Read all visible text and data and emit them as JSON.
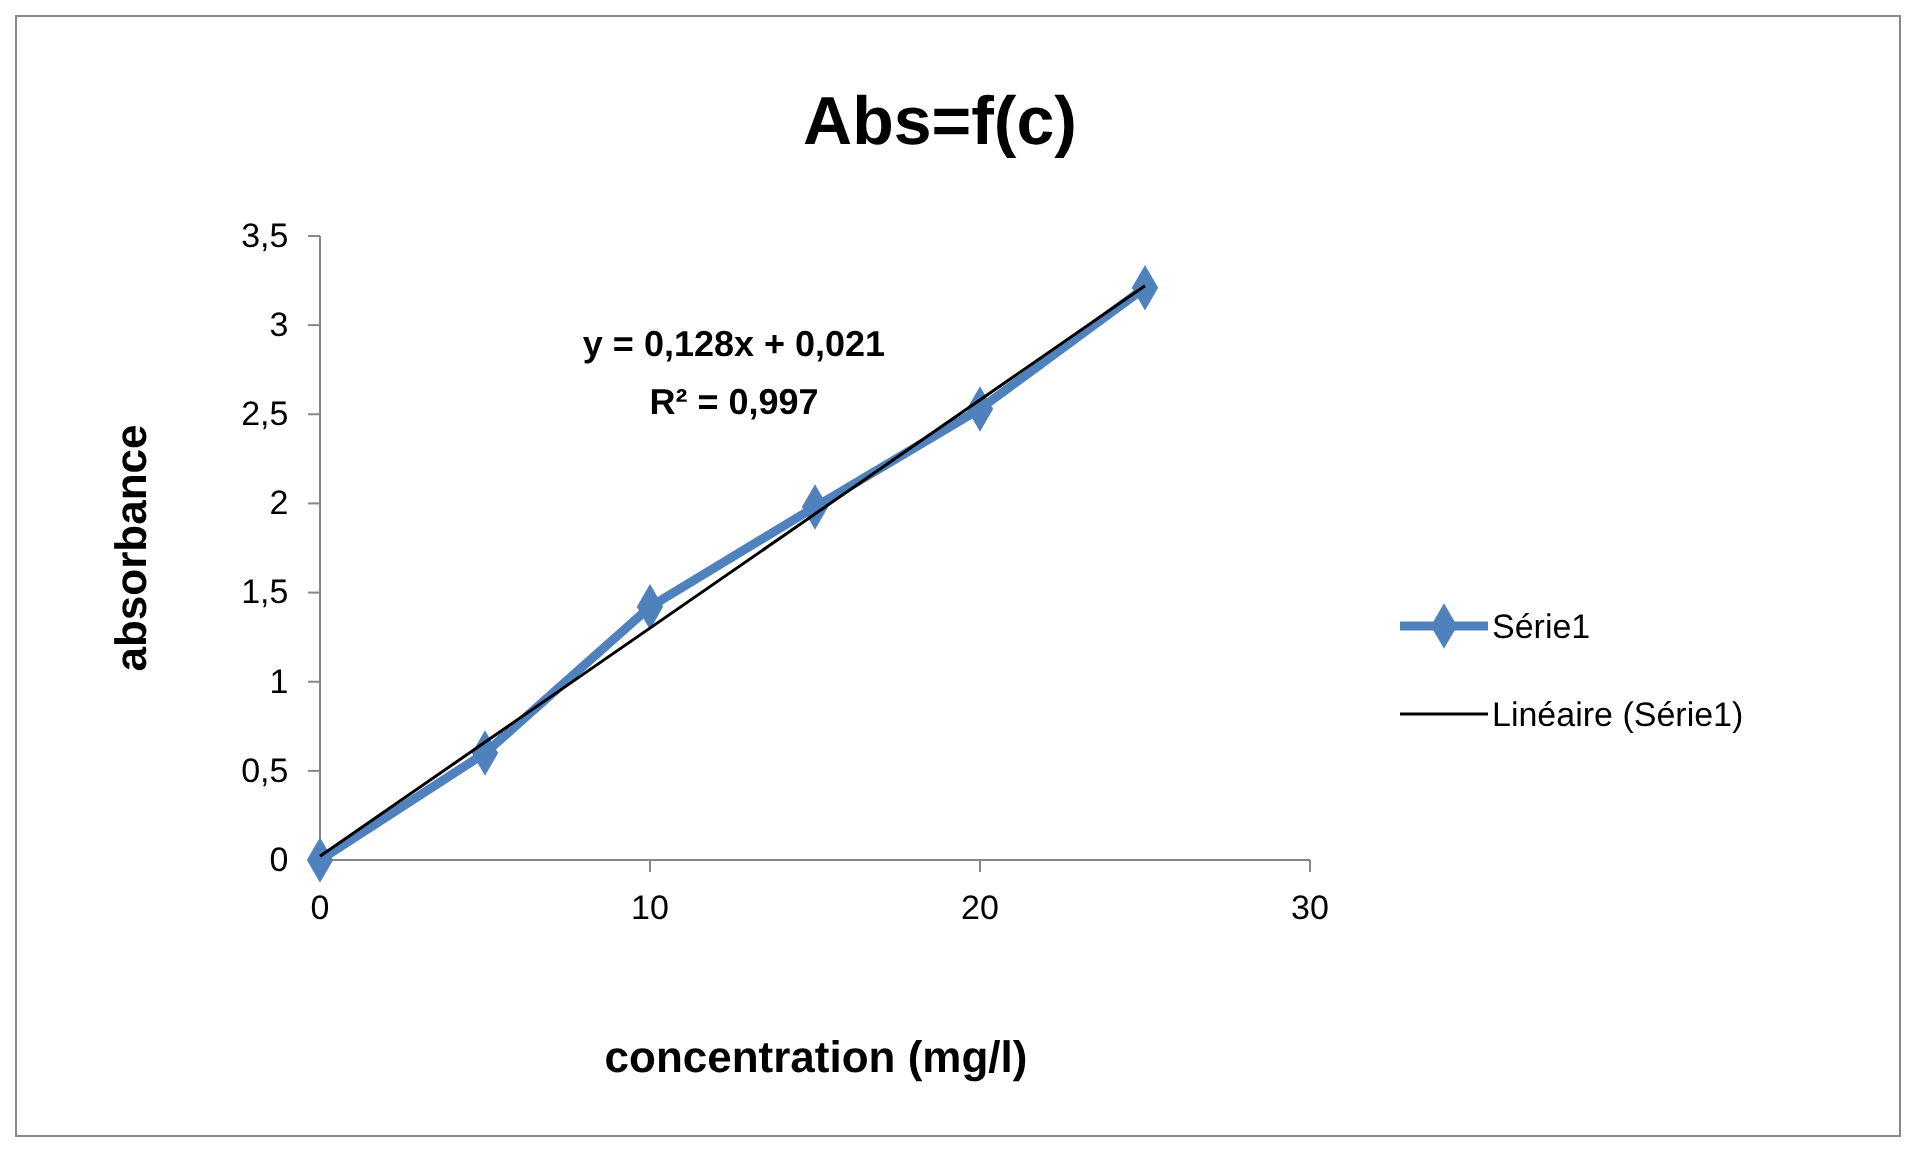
{
  "chart_data": {
    "type": "line",
    "title": "Abs=f(c)",
    "xlabel": "concentration (mg/l)",
    "ylabel": "absorbance",
    "x": [
      0,
      5,
      10,
      15,
      20,
      25
    ],
    "series": [
      {
        "name": "Série1",
        "color": "#4f81bd",
        "values": [
          0,
          0.6,
          1.42,
          1.98,
          2.53,
          3.21
        ],
        "marker": "diamond"
      },
      {
        "name": "Linéaire (Série1)",
        "color": "#000000",
        "type": "line",
        "x": [
          0,
          25
        ],
        "values": [
          0.021,
          3.221
        ],
        "marker": "none"
      }
    ],
    "xlim": [
      0,
      30
    ],
    "xticks": [
      0,
      10,
      20,
      30
    ],
    "ylim": [
      0,
      3.5
    ],
    "yticks": [
      0,
      {
        "value": 0.5,
        "label": "0,5"
      },
      1,
      {
        "value": 1.5,
        "label": "1,5"
      },
      2,
      {
        "value": 2.5,
        "label": "2,5"
      },
      3,
      {
        "value": 3.5,
        "label": "3,5"
      }
    ],
    "annotations": [
      "y = 0,128x + 0,021",
      "R² = 0,997"
    ],
    "grid": false,
    "legend": "right"
  }
}
